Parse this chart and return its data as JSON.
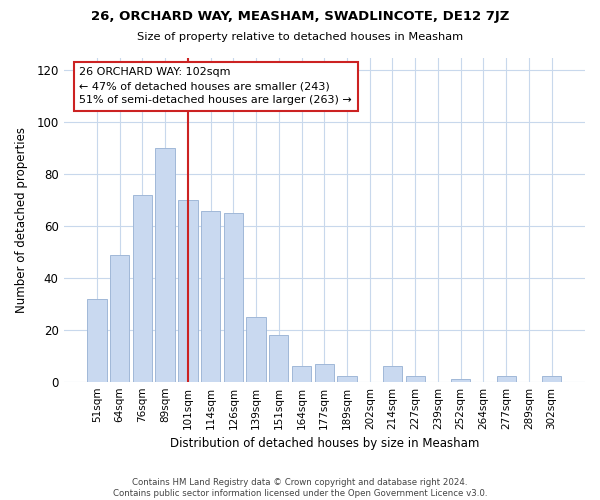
{
  "title": "26, ORCHARD WAY, MEASHAM, SWADLINCOTE, DE12 7JZ",
  "subtitle": "Size of property relative to detached houses in Measham",
  "xlabel": "Distribution of detached houses by size in Measham",
  "ylabel": "Number of detached properties",
  "bar_labels": [
    "51sqm",
    "64sqm",
    "76sqm",
    "89sqm",
    "101sqm",
    "114sqm",
    "126sqm",
    "139sqm",
    "151sqm",
    "164sqm",
    "177sqm",
    "189sqm",
    "202sqm",
    "214sqm",
    "227sqm",
    "239sqm",
    "252sqm",
    "264sqm",
    "277sqm",
    "289sqm",
    "302sqm"
  ],
  "bar_values": [
    32,
    49,
    72,
    90,
    70,
    66,
    65,
    25,
    18,
    6,
    7,
    2,
    0,
    6,
    2,
    0,
    1,
    0,
    2,
    0,
    2
  ],
  "bar_color": "#c9d9f0",
  "bar_edge_color": "#a0b8d8",
  "vline_x_index": 4,
  "vline_color": "#cc2222",
  "annotation_line1": "26 ORCHARD WAY: 102sqm",
  "annotation_line2": "← 47% of detached houses are smaller (243)",
  "annotation_line3": "51% of semi-detached houses are larger (263) →",
  "ylim": [
    0,
    125
  ],
  "yticks": [
    0,
    20,
    40,
    60,
    80,
    100,
    120
  ],
  "footer": "Contains HM Land Registry data © Crown copyright and database right 2024.\nContains public sector information licensed under the Open Government Licence v3.0.",
  "bg_color": "#ffffff",
  "grid_color": "#c8d8ec"
}
